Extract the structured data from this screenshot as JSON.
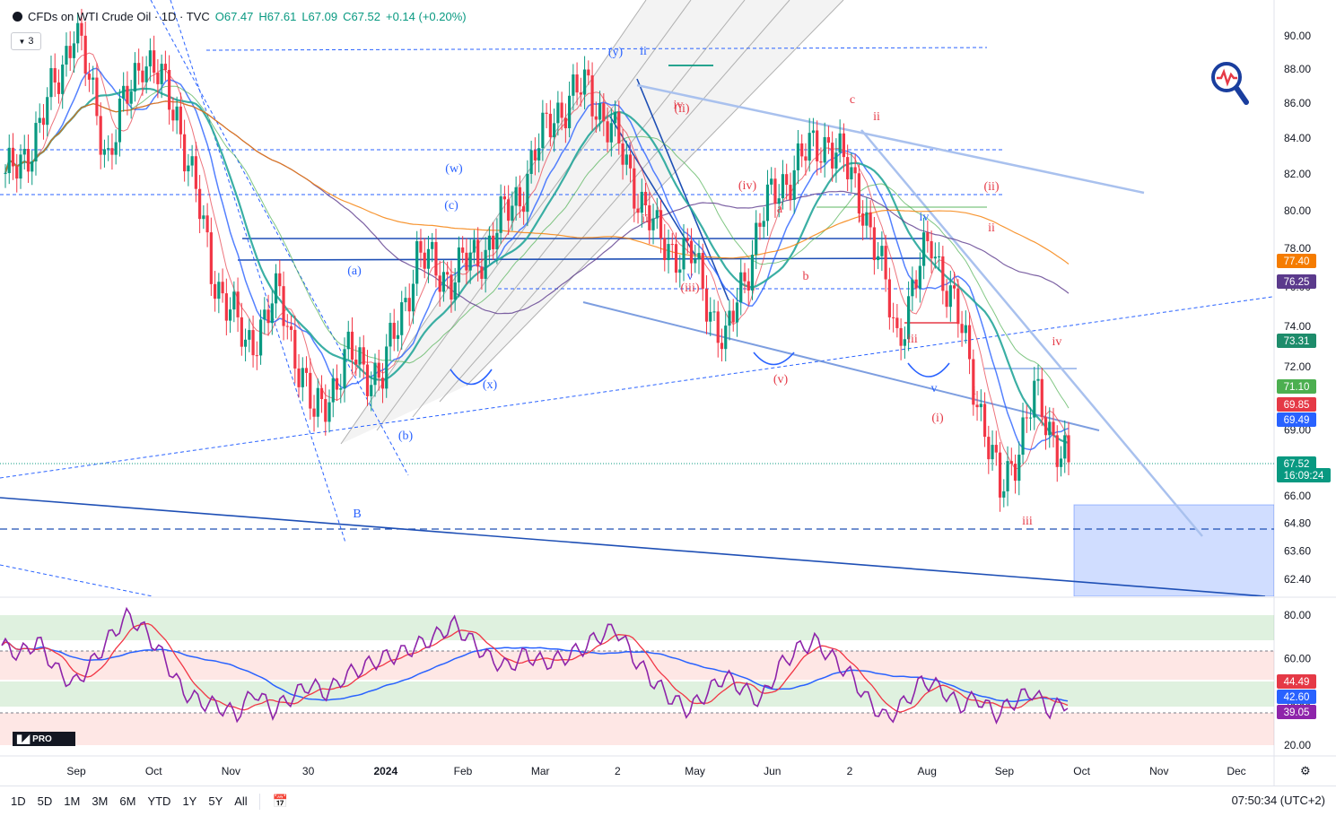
{
  "header": {
    "symbol": "CFDs on WTI Crude Oil · 1D · TVC",
    "open": "O67.47",
    "high": "H67.61",
    "low": "L67.09",
    "close": "C67.52",
    "change": "+0.14 (+0.20%)",
    "indicator_count": "3"
  },
  "chart_data": [
    {
      "type": "line",
      "series_kind": "candlestick",
      "x_ticks": [
        "Sep",
        "Oct",
        "Nov",
        "30",
        "2024",
        "Feb",
        "Mar",
        "2",
        "May",
        "Jun",
        "2",
        "Aug",
        "Sep",
        "Oct",
        "Nov",
        "Dec"
      ],
      "y_ticks": [
        "90.00",
        "88.00",
        "86.00",
        "84.00",
        "82.00",
        "80.00",
        "78.00",
        "76.00",
        "74.00",
        "72.00",
        "69.00",
        "66.00",
        "64.80",
        "63.60",
        "62.40"
      ],
      "ylim": [
        61.8,
        91.0
      ],
      "scale": "log",
      "price_anchors": {
        "dates": [
          "Aug",
          "Sep",
          "Sep",
          "Oct",
          "Oct",
          "Oct",
          "Nov",
          "Nov",
          "Nov",
          "Dec",
          "Jan",
          "Jan",
          "Feb",
          "Feb",
          "Mar",
          "Mar",
          "Apr",
          "Apr",
          "Apr",
          "May",
          "May",
          "Jun",
          "Jun",
          "Jun",
          "Jul",
          "Jul",
          "Aug",
          "Aug",
          "Aug",
          "Sep",
          "Sep",
          "Sep"
        ],
        "closes": [
          81.5,
          84.5,
          90.5,
          83.0,
          89.0,
          85.5,
          77.0,
          73.0,
          75.5,
          69.5,
          72.5,
          71.5,
          77.5,
          76.5,
          78.0,
          81.0,
          85.5,
          87.0,
          83.0,
          78.5,
          77.5,
          73.0,
          79.5,
          82.5,
          84.0,
          80.5,
          73.5,
          78.5,
          73.0,
          66.0,
          70.5,
          67.52
        ]
      },
      "price_labels": [
        {
          "value": "77.40",
          "color": "#f57c00"
        },
        {
          "value": "76.25",
          "color": "#5b3a8c"
        },
        {
          "value": "73.31",
          "color": "#1e8c6b"
        },
        {
          "value": "71.10",
          "color": "#4caf50"
        },
        {
          "value": "69.85",
          "color": "#e53946"
        },
        {
          "value": "69.49",
          "color": "#2962ff"
        },
        {
          "value": "67.52",
          "color": "#089981"
        }
      ],
      "countdown": "16:09:24",
      "wave_labels": [
        "(y)",
        "ii",
        "iv",
        "(ii)",
        "i",
        "c",
        "ii",
        "(w)",
        "(c)",
        "(iv)",
        "(ii)",
        "a",
        "i",
        "iii",
        "iv",
        "ii",
        "(a)",
        "v",
        "(iii)",
        "b",
        "iii",
        "iv",
        "(x)",
        "(v)",
        "v",
        "i",
        "(i)",
        "(b)",
        "B",
        "iii"
      ]
    },
    {
      "type": "line",
      "name": "RSI",
      "y_ticks": [
        "80.00",
        "60.00",
        "40.00",
        "20.00"
      ],
      "ylim": [
        18,
        84
      ],
      "rsi_values": [
        66,
        62,
        68,
        55,
        48,
        58,
        70,
        80,
        72,
        60,
        45,
        40,
        38,
        34,
        45,
        36,
        42,
        48,
        44,
        52,
        56,
        60,
        62,
        66,
        70,
        76,
        68,
        60,
        56,
        62,
        58,
        60,
        64,
        70,
        74,
        60,
        50,
        42,
        36,
        44,
        52,
        46,
        40,
        56,
        64,
        68,
        60,
        52,
        40,
        32,
        40,
        50,
        46,
        38,
        42,
        34,
        40,
        45,
        36,
        40
      ],
      "price_labels": [
        {
          "value": "44.49",
          "color": "#e53946"
        },
        {
          "value": "42.60",
          "color": "#2962ff"
        },
        {
          "value": "39.05",
          "color": "#8e24aa"
        }
      ]
    }
  ],
  "toolbar": {
    "timeframes": [
      "1D",
      "5D",
      "1M",
      "3M",
      "6M",
      "YTD",
      "1Y",
      "5Y",
      "All"
    ],
    "clock": "07:50:34 (UTC+2)"
  },
  "branding": {
    "tv_logo_text": "PRO"
  }
}
